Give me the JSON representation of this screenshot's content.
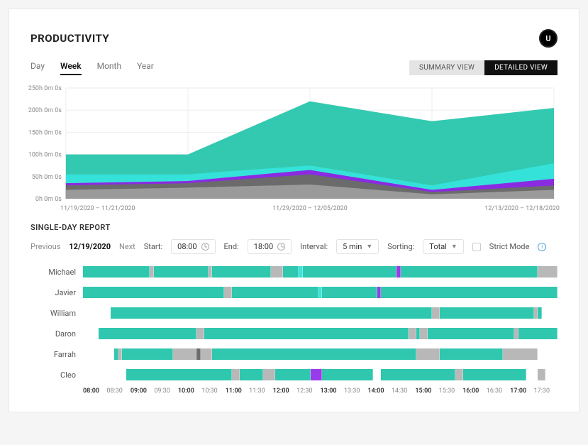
{
  "header": {
    "title": "PRODUCTIVITY",
    "avatar_initial": "U"
  },
  "range_tabs": {
    "items": [
      "Day",
      "Week",
      "Month",
      "Year"
    ],
    "active_index": 1
  },
  "view_toggle": {
    "summary": "SUMMARY VIEW",
    "detailed": "DETAILED VIEW",
    "active": "detailed"
  },
  "area_chart": {
    "type": "area-stacked",
    "ylim": [
      0,
      250
    ],
    "ytick_step": 50,
    "ytick_suffix": "h 0m 0s",
    "x_labels": [
      "11/19/2020 – 11/21/2020",
      "11/29/2020 – 12/05/2020",
      "12/13/2020 – 12/18/2020"
    ],
    "x_count": 5,
    "series": [
      {
        "name": "teal-back",
        "color": "#33c9b0",
        "values": [
          100,
          100,
          220,
          175,
          205
        ]
      },
      {
        "name": "cyan",
        "color": "#35e2d9",
        "values": [
          55,
          55,
          75,
          30,
          80
        ]
      },
      {
        "name": "purple",
        "color": "#8a2be2",
        "values": [
          35,
          40,
          65,
          20,
          45
        ]
      },
      {
        "name": "grey-dark",
        "color": "#6b6b6b",
        "values": [
          30,
          35,
          55,
          15,
          30
        ]
      },
      {
        "name": "grey-light",
        "color": "#9a9a9a",
        "values": [
          20,
          25,
          32,
          10,
          20
        ]
      }
    ],
    "grid_color": "#eeeeee",
    "background_color": "#ffffff"
  },
  "single_day": {
    "section_title": "SINGLE-DAY REPORT",
    "prev_label": "Previous",
    "date": "12/19/2020",
    "next_label": "Next",
    "start_label": "Start:",
    "start_value": "08:00",
    "end_label": "End:",
    "end_value": "18:00",
    "interval_label": "Interval:",
    "interval_value": "5 min",
    "sorting_label": "Sorting:",
    "sorting_value": "Total",
    "strict_label": "Strict Mode"
  },
  "timeline": {
    "palette": {
      "t": "#2fc7ae",
      "c": "#3be4da",
      "g": "#b8b8b8",
      "d": "#6c6c6c",
      "p": "#9a3bea",
      "e": "transparent"
    },
    "slot_count": 120,
    "rows": [
      {
        "name": "Michael",
        "pattern": "tttttttttttttttttgttttttttttttttgtttttttttttttttgggttttcttttttttttttttttttttttttptttttttttttttttttttttttttttttttttttggggg"
      },
      {
        "name": "Javier",
        "pattern": "ttttttttttttttttttttttttttttttttttttggttttttttttttttttttttttcttttttttttttttpttttttttttttttttttttttttttttttttttttttttttttt"
      },
      {
        "name": "William",
        "pattern": "eeeeeeettttttttttttttttttttttttttttttttttttttttttttttttttttttttttttttttttttttttttttttttttggttttttttttttttttttttttttgteeee"
      },
      {
        "name": "Daron",
        "pattern": "eeeetttttttttttttttttttttttttggttttttttttttttttttttttttttttttttttttttttttttttttttttggtggttttttttttttttttttttttgtttttttttt"
      },
      {
        "name": "Farrah",
        "pattern": "eeeeeeeetgtttttttttttttggggggdgggttttttttttttttttttttttttttttttttttttttttttttttttttttggggggttttttttttttttttgggggggggeeeee"
      },
      {
        "name": "Cleo",
        "pattern": "eeeeeeeeeeetttttttttttttttttttttttttttggttttttgggtttttttttpppttttttttttttteetttttttttttttttttttggtttttttttttttttteeeggeee"
      }
    ],
    "x_ticks": [
      "08:00",
      "08:30",
      "09:00",
      "09:30",
      "10:00",
      "10:30",
      "11:00",
      "11:30",
      "12:00",
      "12:30",
      "13:00",
      "13:30",
      "14:00",
      "14:30",
      "15:00",
      "15:30",
      "16:00",
      "16:30",
      "17:00",
      "17:30"
    ]
  }
}
